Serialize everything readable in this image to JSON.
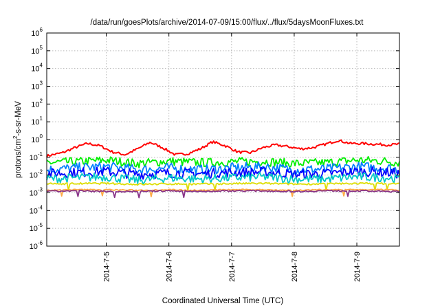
{
  "chart_data": {
    "type": "line",
    "title": "/data/run/goesPlots/archive/2014-07-09/15:00/flux/../flux/5daysMoonFluxes.txt",
    "xlabel": "Coordinated Universal Time (UTC)",
    "ylabel": "protons/cm2-s-sr-MeV",
    "ylabel_parts": [
      "protons/cm",
      "2",
      "-s-sr-MeV"
    ],
    "yscale": "log",
    "ylim_exponents": [
      -6,
      6
    ],
    "y_tick_base": "10",
    "y_ticks": [
      {
        "base": "10",
        "exp": "-6"
      },
      {
        "base": "10",
        "exp": "-5"
      },
      {
        "base": "10",
        "exp": "-4"
      },
      {
        "base": "10",
        "exp": "-3"
      },
      {
        "base": "10",
        "exp": "-2"
      },
      {
        "base": "10",
        "exp": "-1"
      },
      {
        "base": "10",
        "exp": "0"
      },
      {
        "base": "10",
        "exp": "1"
      },
      {
        "base": "10",
        "exp": "2"
      },
      {
        "base": "10",
        "exp": "3"
      },
      {
        "base": "10",
        "exp": "4"
      },
      {
        "base": "10",
        "exp": "5"
      },
      {
        "base": "10",
        "exp": "6"
      }
    ],
    "xlim_days": [
      4.05,
      9.68
    ],
    "x_ticks": [
      {
        "label": "2014-7-5",
        "day": 5
      },
      {
        "label": "2014-7-6",
        "day": 6
      },
      {
        "label": "2014-7-7",
        "day": 7
      },
      {
        "label": "2014-7-8",
        "day": 8
      },
      {
        "label": "2014-7-9",
        "day": 9
      }
    ],
    "grid": true,
    "series": [
      {
        "color": "#ff0000",
        "days": [
          4.05,
          4.3,
          4.5,
          4.7,
          4.9,
          5.1,
          5.3,
          5.5,
          5.7,
          5.9,
          6.1,
          6.3,
          6.5,
          6.7,
          6.9,
          7.1,
          7.3,
          7.5,
          7.7,
          7.9,
          8.1,
          8.3,
          8.5,
          8.7,
          8.9,
          9.1,
          9.3,
          9.5,
          9.68
        ],
        "values": [
          0.12,
          0.18,
          0.35,
          0.6,
          0.45,
          0.2,
          0.14,
          0.3,
          0.7,
          0.35,
          0.14,
          0.16,
          0.3,
          0.75,
          0.45,
          0.2,
          0.18,
          0.35,
          0.5,
          0.4,
          0.3,
          0.35,
          0.55,
          0.9,
          0.6,
          0.6,
          0.55,
          0.5,
          0.55
        ]
      },
      {
        "color": "#00ee00",
        "days": [
          4.05,
          4.5,
          5.0,
          5.5,
          6.0,
          6.5,
          7.0,
          7.5,
          8.0,
          8.5,
          9.0,
          9.5,
          9.68
        ],
        "values": [
          0.05,
          0.055,
          0.07,
          0.045,
          0.06,
          0.05,
          0.055,
          0.06,
          0.045,
          0.05,
          0.07,
          0.06,
          0.05
        ]
      },
      {
        "color": "#0080ff",
        "days": [
          4.05,
          4.5,
          5.0,
          5.5,
          6.0,
          6.5,
          7.0,
          7.5,
          8.0,
          8.5,
          9.0,
          9.5,
          9.68
        ],
        "values": [
          0.02,
          0.025,
          0.03,
          0.02,
          0.025,
          0.02,
          0.025,
          0.03,
          0.02,
          0.022,
          0.03,
          0.025,
          0.02
        ]
      },
      {
        "color": "#0000ff",
        "days": [
          4.05,
          4.5,
          5.0,
          5.5,
          6.0,
          6.5,
          7.0,
          7.5,
          8.0,
          8.5,
          9.0,
          9.5,
          9.68
        ],
        "values": [
          0.012,
          0.014,
          0.016,
          0.011,
          0.013,
          0.012,
          0.014,
          0.015,
          0.011,
          0.012,
          0.016,
          0.014,
          0.012
        ]
      },
      {
        "color": "#00c8c8",
        "days": [
          4.05,
          4.5,
          5.0,
          5.5,
          6.0,
          6.5,
          7.0,
          7.5,
          8.0,
          8.5,
          9.0,
          9.5,
          9.68
        ],
        "values": [
          0.006,
          0.007,
          0.008,
          0.005,
          0.007,
          0.006,
          0.007,
          0.008,
          0.006,
          0.006,
          0.008,
          0.007,
          0.006
        ]
      },
      {
        "color": "#dddd00",
        "days": [
          4.05,
          4.5,
          5.0,
          5.5,
          6.0,
          6.5,
          7.0,
          7.5,
          8.0,
          8.5,
          9.0,
          9.5,
          9.68
        ],
        "values": [
          0.0032,
          0.0033,
          0.0034,
          0.003,
          0.0032,
          0.0031,
          0.0033,
          0.0034,
          0.0031,
          0.0032,
          0.0034,
          0.0033,
          0.0032
        ]
      },
      {
        "color": "#ffaa44",
        "days": [
          4.05,
          4.5,
          5.0,
          5.5,
          6.0,
          6.5,
          7.0,
          7.5,
          8.0,
          8.5,
          9.0,
          9.5,
          9.68
        ],
        "values": [
          0.0014,
          0.0015,
          0.0015,
          0.0014,
          0.0015,
          0.0014,
          0.0015,
          0.0015,
          0.0014,
          0.0015,
          0.0015,
          0.0015,
          0.0014
        ]
      },
      {
        "color": "#883388",
        "days": [
          4.05,
          4.5,
          5.0,
          5.5,
          6.0,
          6.5,
          7.0,
          7.5,
          8.0,
          8.5,
          9.0,
          9.5,
          9.68
        ],
        "values": [
          0.0012,
          0.0013,
          0.0012,
          0.0012,
          0.0013,
          0.0012,
          0.0013,
          0.0013,
          0.0012,
          0.0013,
          0.0013,
          0.0012,
          0.0012
        ]
      }
    ]
  }
}
